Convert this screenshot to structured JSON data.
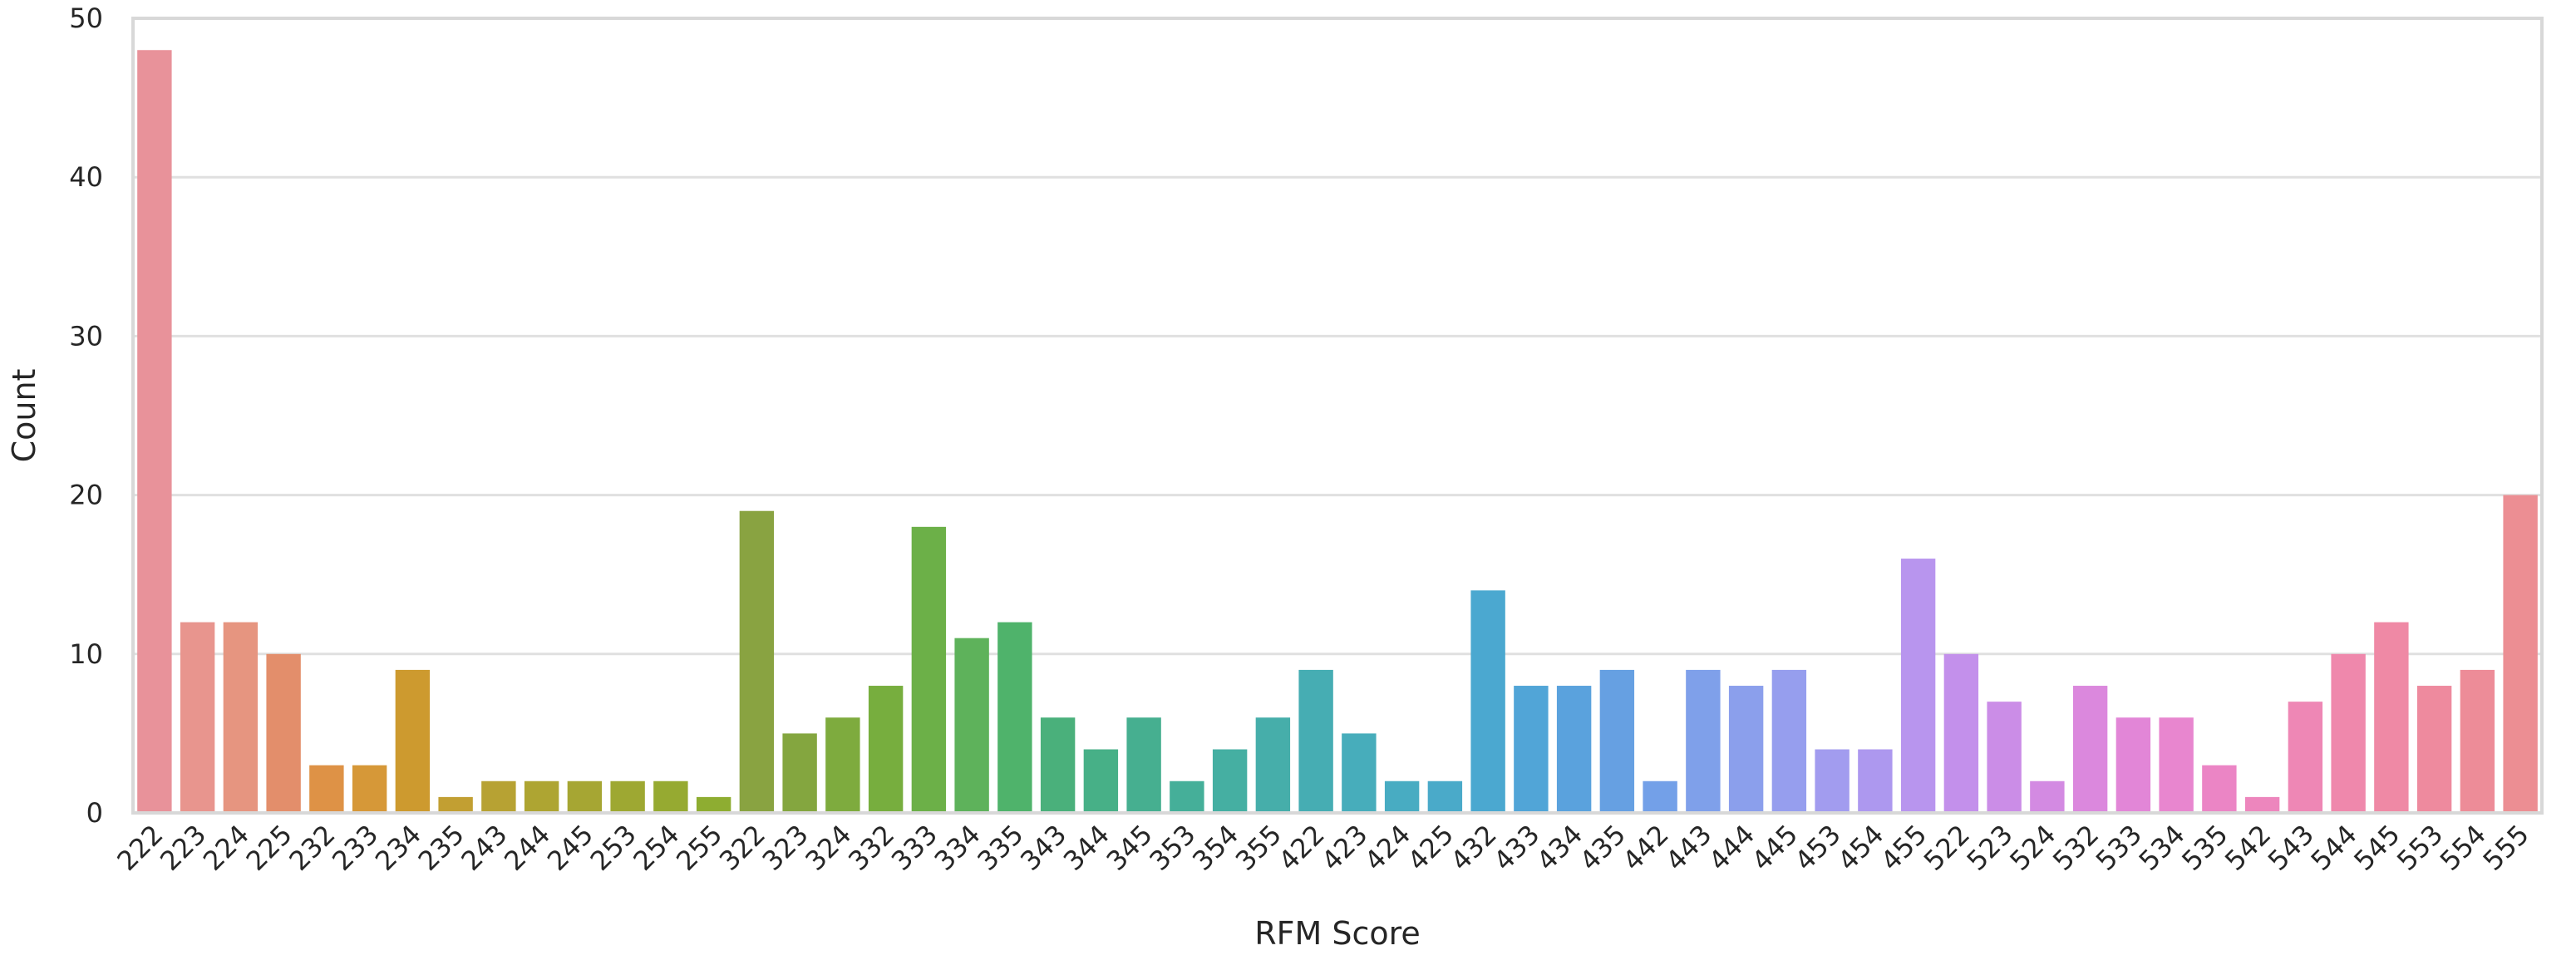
{
  "chart_data": {
    "type": "bar",
    "title": "",
    "xlabel": "RFM Score",
    "ylabel": "Count",
    "ylim": [
      0,
      50
    ],
    "yticks": [
      0,
      10,
      20,
      30,
      40,
      50
    ],
    "grid": true,
    "legend": "none",
    "categories": [
      "222",
      "223",
      "224",
      "225",
      "232",
      "233",
      "234",
      "235",
      "243",
      "244",
      "245",
      "253",
      "254",
      "255",
      "322",
      "323",
      "324",
      "332",
      "333",
      "334",
      "335",
      "343",
      "344",
      "345",
      "353",
      "354",
      "355",
      "422",
      "423",
      "424",
      "425",
      "432",
      "433",
      "434",
      "435",
      "442",
      "443",
      "444",
      "445",
      "453",
      "454",
      "455",
      "522",
      "523",
      "524",
      "532",
      "533",
      "534",
      "535",
      "542",
      "543",
      "544",
      "545",
      "553",
      "554",
      "555"
    ],
    "values": [
      48,
      12,
      12,
      10,
      3,
      3,
      9,
      1,
      2,
      2,
      2,
      2,
      2,
      1,
      19,
      5,
      6,
      8,
      18,
      11,
      12,
      6,
      4,
      6,
      2,
      4,
      6,
      9,
      5,
      2,
      2,
      14,
      8,
      8,
      9,
      2,
      9,
      8,
      9,
      4,
      4,
      16,
      10,
      7,
      2,
      8,
      6,
      6,
      3,
      1,
      7,
      10,
      12,
      8,
      9,
      20
    ],
    "colors": {
      "bars": [
        "#e8929a",
        "#e8958e",
        "#e69580",
        "#e38e6b",
        "#de9246",
        "#d69838",
        "#cd9a2f",
        "#c29f32",
        "#b7a233",
        "#aea532",
        "#a6a633",
        "#9ea832",
        "#96aa31",
        "#8ead31",
        "#89a341",
        "#84a63f",
        "#7eab3e",
        "#77ae3e",
        "#6cb048",
        "#5eb25b",
        "#4fb36b",
        "#4ab07b",
        "#47b087",
        "#46af90",
        "#45af99",
        "#45afa2",
        "#46aeaa",
        "#46adb3",
        "#47adbb",
        "#48acc2",
        "#4aaac9",
        "#4ba8d0",
        "#51a5d7",
        "#5aa2dd",
        "#66a0e2",
        "#73a0e8",
        "#7fa0ea",
        "#8b9fec",
        "#969eee",
        "#a29cef",
        "#ad98ef",
        "#b895ee",
        "#c390eb",
        "#cb8de7",
        "#d38ae2",
        "#db88dd",
        "#e286d7",
        "#e886cf",
        "#eb85c5",
        "#ed86bd",
        "#ee87b5",
        "#ef88ac",
        "#ef89a5",
        "#ee8a9e",
        "#ed8c98",
        "#ec8e93"
      ],
      "grid": "#e0e0e0",
      "frame": "#d8d8d8"
    }
  }
}
